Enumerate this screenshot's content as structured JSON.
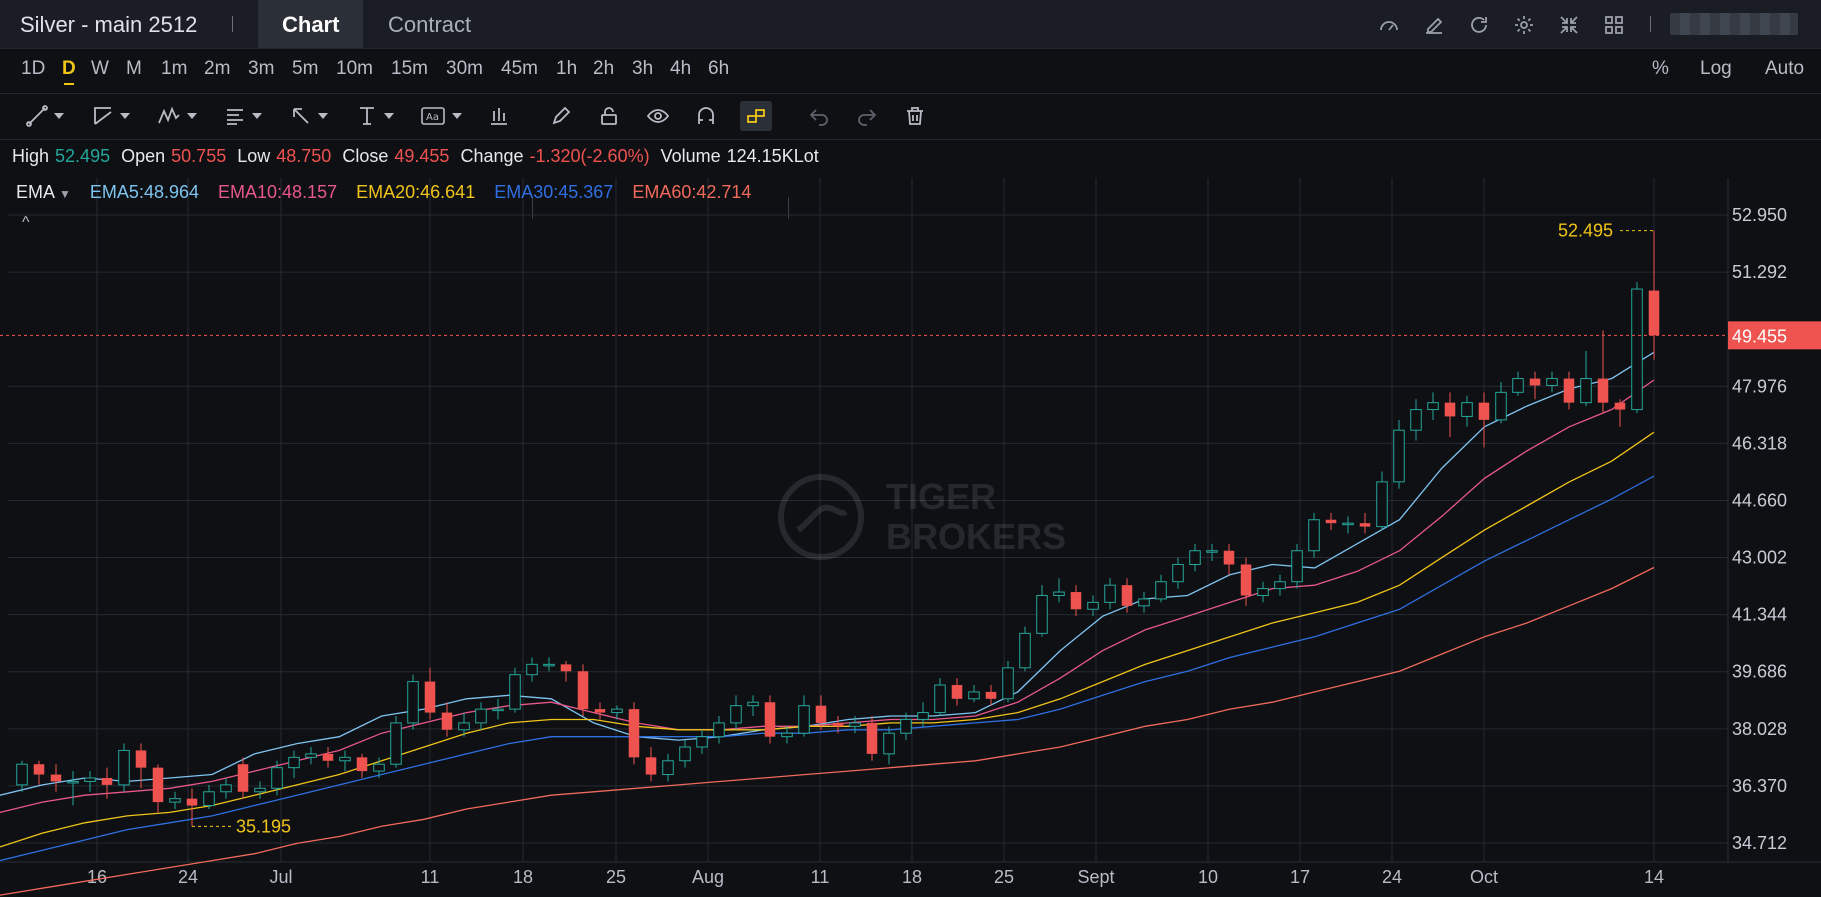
{
  "header": {
    "title": "Silver - main 2512",
    "tabs": [
      {
        "label": "Chart"
      },
      {
        "label": "Contract"
      }
    ],
    "icons": [
      "gauge-icon",
      "edit-icon",
      "refresh-icon",
      "gear-icon",
      "collapse-icon",
      "grid-icon"
    ]
  },
  "periods": {
    "items": [
      "1D",
      "D",
      "W",
      "M",
      "1m",
      "2m",
      "3m",
      "5m",
      "10m",
      "15m",
      "30m",
      "45m",
      "1h",
      "2h",
      "3h",
      "4h",
      "6h"
    ],
    "selected": "D",
    "right": [
      "%",
      "Log",
      "Auto"
    ]
  },
  "toolbar": {
    "tools": [
      "trend-line-tool",
      "channel-tool",
      "pattern-tool",
      "fib-tool",
      "arrow-tool",
      "measure-tool",
      "text-tool",
      "indicator-tool",
      "pen-icon",
      "lock-icon",
      "eye-icon",
      "magnet-icon",
      "link-icon",
      "undo-icon",
      "redo-icon",
      "trash-icon"
    ]
  },
  "ohlc": {
    "high_label": "High",
    "high": "52.495",
    "open_label": "Open",
    "open": "50.755",
    "low_label": "Low",
    "low": "48.750",
    "close_label": "Close",
    "close": "49.455",
    "change_label": "Change",
    "change": "-1.320(-2.60%)",
    "volume_label": "Volume",
    "volume": "124.15KLot"
  },
  "indicator": {
    "name": "EMA",
    "lines": [
      {
        "label": "EMA5:48.964",
        "color": "#7fc4f0"
      },
      {
        "label": "EMA10:48.157",
        "color": "#e8588a"
      },
      {
        "label": "EMA20:46.641",
        "color": "#f0c419"
      },
      {
        "label": "EMA30:45.367",
        "color": "#2f6fe0"
      },
      {
        "label": "EMA60:42.714",
        "color": "#ef6a5a"
      }
    ]
  },
  "colors": {
    "up": "#26a69a",
    "down": "#ef5350",
    "accent": "#f0c419",
    "price": "#ef5350"
  },
  "watermark": {
    "line1": "TIGER",
    "line2": "BROKERS"
  },
  "chart_data": {
    "type": "candlestick",
    "y_ticks": [
      52.95,
      51.292,
      49.455,
      47.976,
      46.318,
      44.66,
      43.002,
      41.344,
      39.686,
      38.028,
      36.37,
      34.712
    ],
    "y_tick_labels": [
      "52.950",
      "51.292",
      "49.455",
      "47.976",
      "46.318",
      "44.660",
      "43.002",
      "41.344",
      "39.686",
      "38.028",
      "36.370",
      "34.712"
    ],
    "ylim": [
      34.2,
      54.0
    ],
    "x_tick_labels": [
      "16",
      "24",
      "Jul",
      "11",
      "18",
      "25",
      "Aug",
      "11",
      "18",
      "25",
      "Sept",
      "10",
      "17",
      "24",
      "Oct",
      "14"
    ],
    "current_price": "49.455",
    "max_label": "52.495",
    "min_label": "35.195",
    "candles": [
      {
        "o": 36.4,
        "c": 37.0,
        "h": 37.1,
        "l": 36.2
      },
      {
        "o": 37.0,
        "c": 36.7,
        "h": 37.1,
        "l": 36.4
      },
      {
        "o": 36.7,
        "c": 36.5,
        "h": 37.0,
        "l": 36.2
      },
      {
        "o": 36.5,
        "c": 36.5,
        "h": 36.8,
        "l": 35.8
      },
      {
        "o": 36.5,
        "c": 36.6,
        "h": 36.8,
        "l": 36.2
      },
      {
        "o": 36.6,
        "c": 36.4,
        "h": 36.9,
        "l": 36.0
      },
      {
        "o": 36.4,
        "c": 37.4,
        "h": 37.6,
        "l": 36.2
      },
      {
        "o": 37.4,
        "c": 36.9,
        "h": 37.6,
        "l": 36.3
      },
      {
        "o": 36.9,
        "c": 35.9,
        "h": 37.0,
        "l": 35.6
      },
      {
        "o": 35.9,
        "c": 36.0,
        "h": 36.2,
        "l": 35.7
      },
      {
        "o": 36.0,
        "c": 35.8,
        "h": 36.3,
        "l": 35.2
      },
      {
        "o": 35.8,
        "c": 36.2,
        "h": 36.4,
        "l": 35.7
      },
      {
        "o": 36.2,
        "c": 36.4,
        "h": 36.6,
        "l": 36.0
      },
      {
        "o": 37.0,
        "c": 36.2,
        "h": 37.2,
        "l": 36.0
      },
      {
        "o": 36.2,
        "c": 36.3,
        "h": 36.5,
        "l": 36.0
      },
      {
        "o": 36.3,
        "c": 36.9,
        "h": 37.1,
        "l": 36.1
      },
      {
        "o": 36.9,
        "c": 37.2,
        "h": 37.4,
        "l": 36.6
      },
      {
        "o": 37.2,
        "c": 37.3,
        "h": 37.5,
        "l": 37.0
      },
      {
        "o": 37.3,
        "c": 37.1,
        "h": 37.5,
        "l": 36.9
      },
      {
        "o": 37.1,
        "c": 37.2,
        "h": 37.4,
        "l": 36.8
      },
      {
        "o": 37.2,
        "c": 36.8,
        "h": 37.3,
        "l": 36.6
      },
      {
        "o": 36.8,
        "c": 37.0,
        "h": 37.2,
        "l": 36.6
      },
      {
        "o": 37.0,
        "c": 38.2,
        "h": 38.4,
        "l": 36.9
      },
      {
        "o": 38.2,
        "c": 39.4,
        "h": 39.6,
        "l": 38.0
      },
      {
        "o": 39.4,
        "c": 38.5,
        "h": 39.8,
        "l": 38.3
      },
      {
        "o": 38.5,
        "c": 38.0,
        "h": 38.8,
        "l": 37.8
      },
      {
        "o": 38.0,
        "c": 38.2,
        "h": 38.5,
        "l": 37.8
      },
      {
        "o": 38.2,
        "c": 38.6,
        "h": 38.8,
        "l": 38.0
      },
      {
        "o": 38.6,
        "c": 38.6,
        "h": 38.9,
        "l": 38.3
      },
      {
        "o": 38.6,
        "c": 39.6,
        "h": 39.8,
        "l": 38.5
      },
      {
        "o": 39.6,
        "c": 39.9,
        "h": 40.1,
        "l": 39.4
      },
      {
        "o": 39.9,
        "c": 39.9,
        "h": 40.1,
        "l": 39.7
      },
      {
        "o": 39.9,
        "c": 39.7,
        "h": 40.0,
        "l": 39.4
      },
      {
        "o": 39.7,
        "c": 38.6,
        "h": 39.9,
        "l": 38.4
      },
      {
        "o": 38.6,
        "c": 38.5,
        "h": 38.8,
        "l": 38.3
      },
      {
        "o": 38.5,
        "c": 38.6,
        "h": 38.7,
        "l": 38.3
      },
      {
        "o": 38.6,
        "c": 37.2,
        "h": 38.8,
        "l": 37.0
      },
      {
        "o": 37.2,
        "c": 36.7,
        "h": 37.5,
        "l": 36.5
      },
      {
        "o": 36.7,
        "c": 37.1,
        "h": 37.3,
        "l": 36.5
      },
      {
        "o": 37.1,
        "c": 37.5,
        "h": 37.7,
        "l": 36.9
      },
      {
        "o": 37.5,
        "c": 37.8,
        "h": 38.0,
        "l": 37.3
      },
      {
        "o": 37.8,
        "c": 38.2,
        "h": 38.4,
        "l": 37.6
      },
      {
        "o": 38.2,
        "c": 38.7,
        "h": 39.0,
        "l": 38.0
      },
      {
        "o": 38.7,
        "c": 38.8,
        "h": 39.0,
        "l": 38.4
      },
      {
        "o": 38.8,
        "c": 37.8,
        "h": 39.0,
        "l": 37.6
      },
      {
        "o": 37.8,
        "c": 37.9,
        "h": 38.1,
        "l": 37.6
      },
      {
        "o": 37.9,
        "c": 38.7,
        "h": 39.0,
        "l": 37.8
      },
      {
        "o": 38.7,
        "c": 38.2,
        "h": 39.0,
        "l": 38.0
      },
      {
        "o": 38.2,
        "c": 38.1,
        "h": 38.4,
        "l": 37.9
      },
      {
        "o": 38.1,
        "c": 38.2,
        "h": 38.4,
        "l": 37.9
      },
      {
        "o": 38.2,
        "c": 37.3,
        "h": 38.4,
        "l": 37.1
      },
      {
        "o": 37.3,
        "c": 37.9,
        "h": 38.1,
        "l": 37.0
      },
      {
        "o": 37.9,
        "c": 38.3,
        "h": 38.5,
        "l": 37.7
      },
      {
        "o": 38.3,
        "c": 38.5,
        "h": 38.8,
        "l": 38.1
      },
      {
        "o": 38.5,
        "c": 39.3,
        "h": 39.5,
        "l": 38.4
      },
      {
        "o": 39.3,
        "c": 38.9,
        "h": 39.5,
        "l": 38.7
      },
      {
        "o": 38.9,
        "c": 39.1,
        "h": 39.3,
        "l": 38.8
      },
      {
        "o": 39.1,
        "c": 38.9,
        "h": 39.3,
        "l": 38.7
      },
      {
        "o": 38.9,
        "c": 39.8,
        "h": 40.0,
        "l": 38.8
      },
      {
        "o": 39.8,
        "c": 40.8,
        "h": 41.0,
        "l": 39.7
      },
      {
        "o": 40.8,
        "c": 41.9,
        "h": 42.2,
        "l": 40.7
      },
      {
        "o": 41.9,
        "c": 42.0,
        "h": 42.4,
        "l": 41.7
      },
      {
        "o": 42.0,
        "c": 41.5,
        "h": 42.2,
        "l": 41.3
      },
      {
        "o": 41.5,
        "c": 41.7,
        "h": 41.9,
        "l": 41.3
      },
      {
        "o": 41.7,
        "c": 42.2,
        "h": 42.4,
        "l": 41.5
      },
      {
        "o": 42.2,
        "c": 41.6,
        "h": 42.4,
        "l": 41.4
      },
      {
        "o": 41.6,
        "c": 41.8,
        "h": 42.0,
        "l": 41.4
      },
      {
        "o": 41.8,
        "c": 42.3,
        "h": 42.5,
        "l": 41.7
      },
      {
        "o": 42.3,
        "c": 42.8,
        "h": 43.0,
        "l": 42.1
      },
      {
        "o": 42.8,
        "c": 43.2,
        "h": 43.4,
        "l": 42.6
      },
      {
        "o": 43.2,
        "c": 43.2,
        "h": 43.4,
        "l": 42.9
      },
      {
        "o": 43.2,
        "c": 42.8,
        "h": 43.4,
        "l": 42.5
      },
      {
        "o": 42.8,
        "c": 41.9,
        "h": 43.0,
        "l": 41.6
      },
      {
        "o": 41.9,
        "c": 42.1,
        "h": 42.3,
        "l": 41.7
      },
      {
        "o": 42.1,
        "c": 42.3,
        "h": 42.5,
        "l": 41.9
      },
      {
        "o": 42.3,
        "c": 43.2,
        "h": 43.4,
        "l": 42.1
      },
      {
        "o": 43.2,
        "c": 44.1,
        "h": 44.3,
        "l": 43.0
      },
      {
        "o": 44.1,
        "c": 44.0,
        "h": 44.3,
        "l": 43.8
      },
      {
        "o": 44.0,
        "c": 44.0,
        "h": 44.2,
        "l": 43.7
      },
      {
        "o": 44.0,
        "c": 43.9,
        "h": 44.3,
        "l": 43.7
      },
      {
        "o": 43.9,
        "c": 45.2,
        "h": 45.5,
        "l": 43.8
      },
      {
        "o": 45.2,
        "c": 46.7,
        "h": 47.0,
        "l": 45.0
      },
      {
        "o": 46.7,
        "c": 47.3,
        "h": 47.6,
        "l": 46.4
      },
      {
        "o": 47.3,
        "c": 47.5,
        "h": 47.8,
        "l": 47.0
      },
      {
        "o": 47.5,
        "c": 47.1,
        "h": 47.8,
        "l": 46.5
      },
      {
        "o": 47.1,
        "c": 47.5,
        "h": 47.7,
        "l": 46.8
      },
      {
        "o": 47.5,
        "c": 47.0,
        "h": 47.8,
        "l": 46.2
      },
      {
        "o": 47.0,
        "c": 47.8,
        "h": 48.1,
        "l": 46.9
      },
      {
        "o": 47.8,
        "c": 48.2,
        "h": 48.4,
        "l": 47.7
      },
      {
        "o": 48.2,
        "c": 48.0,
        "h": 48.4,
        "l": 47.6
      },
      {
        "o": 48.0,
        "c": 48.2,
        "h": 48.4,
        "l": 47.8
      },
      {
        "o": 48.2,
        "c": 47.5,
        "h": 48.4,
        "l": 47.3
      },
      {
        "o": 47.5,
        "c": 48.2,
        "h": 49.0,
        "l": 47.4
      },
      {
        "o": 48.2,
        "c": 47.5,
        "h": 49.6,
        "l": 47.2
      },
      {
        "o": 47.5,
        "c": 47.3,
        "h": 47.6,
        "l": 46.8
      },
      {
        "o": 47.3,
        "c": 50.8,
        "h": 51.0,
        "l": 47.2
      },
      {
        "o": 50.755,
        "c": 49.455,
        "h": 52.495,
        "l": 48.75
      }
    ],
    "ema": [
      {
        "name": "EMA5",
        "color": "#7fc4f0",
        "values": [
          36.1,
          36.4,
          36.6,
          36.5,
          36.6,
          36.7,
          37.3,
          37.6,
          37.8,
          38.4,
          38.6,
          38.9,
          39.0,
          38.9,
          38.2,
          37.8,
          37.7,
          37.8,
          38.0,
          38.1,
          38.3,
          38.4,
          38.4,
          38.5,
          39.1,
          40.3,
          41.3,
          41.8,
          41.9,
          42.5,
          42.8,
          42.7,
          43.4,
          44.1,
          45.6,
          46.8,
          47.4,
          47.9,
          48.2,
          48.964
        ]
      },
      {
        "name": "EMA10",
        "color": "#e8588a",
        "values": [
          35.6,
          35.9,
          36.1,
          36.2,
          36.3,
          36.5,
          36.8,
          37.1,
          37.4,
          37.9,
          38.2,
          38.5,
          38.7,
          38.8,
          38.5,
          38.2,
          38.0,
          38.0,
          38.1,
          38.1,
          38.2,
          38.3,
          38.3,
          38.4,
          38.8,
          39.5,
          40.3,
          40.9,
          41.3,
          41.7,
          42.1,
          42.2,
          42.6,
          43.2,
          44.2,
          45.3,
          46.1,
          46.8,
          47.3,
          48.157
        ]
      },
      {
        "name": "EMA20",
        "color": "#f0c419",
        "values": [
          34.6,
          35.0,
          35.3,
          35.5,
          35.6,
          35.8,
          36.1,
          36.4,
          36.7,
          37.1,
          37.5,
          37.9,
          38.2,
          38.3,
          38.3,
          38.1,
          38.0,
          38.0,
          38.0,
          38.1,
          38.1,
          38.2,
          38.2,
          38.3,
          38.5,
          38.9,
          39.4,
          39.9,
          40.3,
          40.7,
          41.1,
          41.4,
          41.7,
          42.2,
          43.0,
          43.8,
          44.5,
          45.2,
          45.8,
          46.641
        ]
      },
      {
        "name": "EMA30",
        "color": "#2f6fe0",
        "values": [
          34.2,
          34.5,
          34.8,
          35.1,
          35.3,
          35.5,
          35.8,
          36.1,
          36.4,
          36.7,
          37.0,
          37.3,
          37.6,
          37.8,
          37.8,
          37.8,
          37.8,
          37.8,
          37.9,
          37.9,
          38.0,
          38.0,
          38.1,
          38.2,
          38.3,
          38.6,
          39.0,
          39.4,
          39.7,
          40.1,
          40.4,
          40.7,
          41.1,
          41.5,
          42.2,
          42.9,
          43.5,
          44.1,
          44.7,
          45.367
        ]
      },
      {
        "name": "EMA60",
        "color": "#ef6a5a",
        "values": [
          33.2,
          33.4,
          33.6,
          33.8,
          34.0,
          34.2,
          34.4,
          34.7,
          34.9,
          35.2,
          35.4,
          35.7,
          35.9,
          36.1,
          36.2,
          36.3,
          36.4,
          36.5,
          36.6,
          36.7,
          36.8,
          36.9,
          37.0,
          37.1,
          37.3,
          37.5,
          37.8,
          38.1,
          38.3,
          38.6,
          38.8,
          39.1,
          39.4,
          39.7,
          40.2,
          40.7,
          41.1,
          41.6,
          42.1,
          42.714
        ]
      }
    ]
  }
}
